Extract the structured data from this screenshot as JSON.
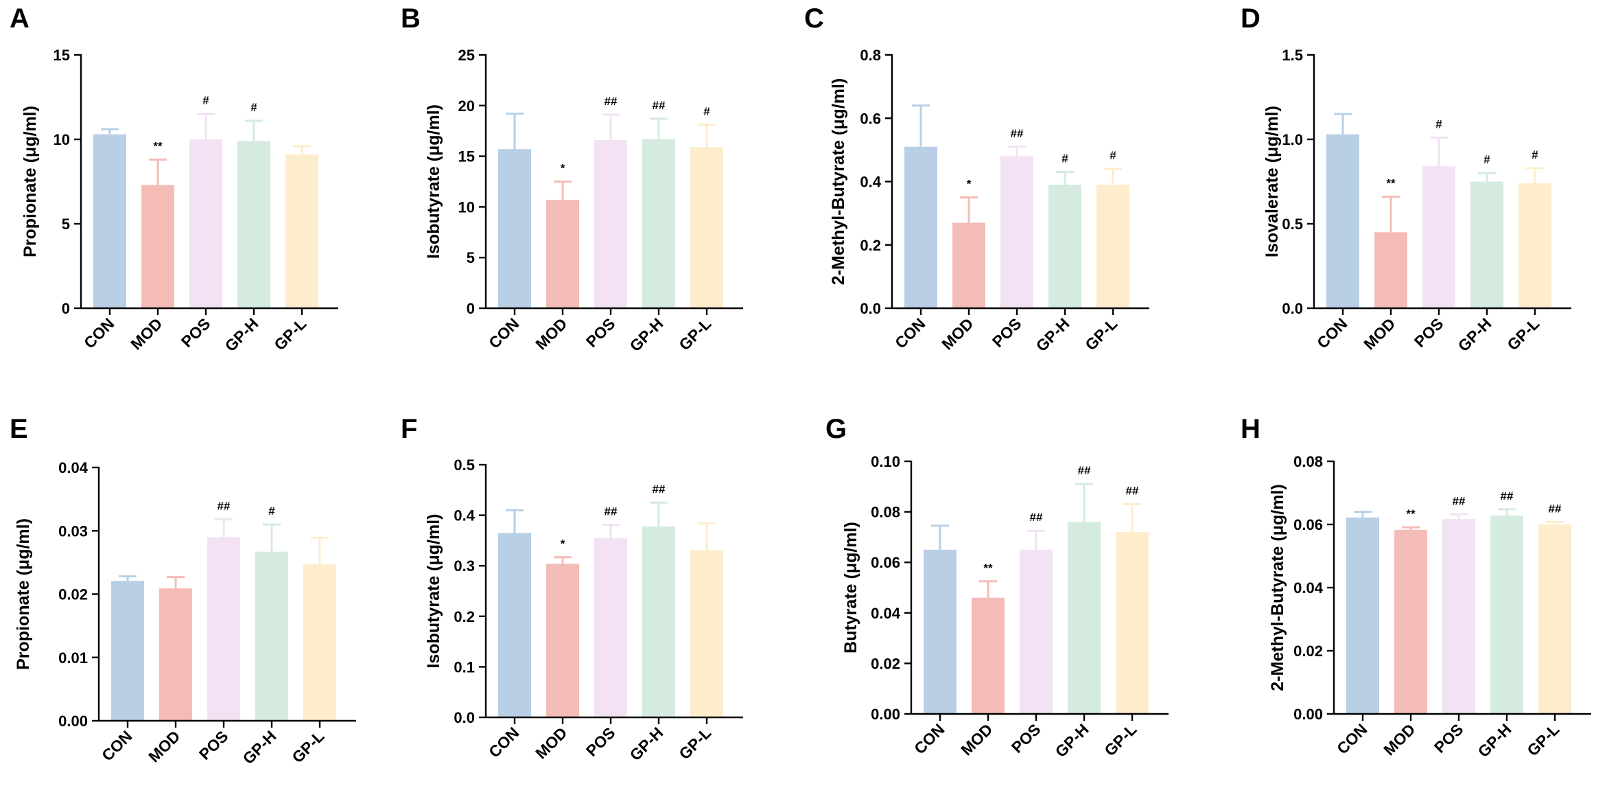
{
  "figure": {
    "colors": {
      "CON": "#b8cfe6",
      "MOD": "#f4bcb6",
      "POS": "#f2e2f3",
      "GP-H": "#d5ebe0",
      "GP-L": "#fdedcd"
    }
  },
  "chart_data": [
    {
      "panel": "A",
      "type": "bar",
      "ylabel": "Propionate (μg/ml)",
      "categories": [
        "CON",
        "MOD",
        "POS",
        "GP-H",
        "GP-L"
      ],
      "values": [
        10.3,
        7.3,
        10.0,
        9.9,
        9.1
      ],
      "errors": [
        0.3,
        1.5,
        1.5,
        1.2,
        0.5
      ],
      "annotations": [
        "",
        "**",
        "#",
        "#",
        ""
      ],
      "ylim": [
        0,
        15
      ],
      "yticks": [
        "0",
        "5",
        "10",
        "15"
      ]
    },
    {
      "panel": "B",
      "type": "bar",
      "ylabel": "Isobutyrate (μg/ml)",
      "categories": [
        "CON",
        "MOD",
        "POS",
        "GP-H",
        "GP-L"
      ],
      "values": [
        15.7,
        10.7,
        16.6,
        16.7,
        15.9
      ],
      "errors": [
        3.5,
        1.8,
        2.5,
        2.0,
        2.2
      ],
      "annotations": [
        "",
        "*",
        "##",
        "##",
        "#"
      ],
      "ylim": [
        0,
        25
      ],
      "yticks": [
        "0",
        "5",
        "10",
        "15",
        "20",
        "25"
      ]
    },
    {
      "panel": "C",
      "type": "bar",
      "ylabel": "2-Methyl-Butyrate (μg/ml)",
      "categories": [
        "CON",
        "MOD",
        "POS",
        "GP-H",
        "GP-L"
      ],
      "values": [
        0.51,
        0.27,
        0.48,
        0.39,
        0.39
      ],
      "errors": [
        0.13,
        0.08,
        0.03,
        0.04,
        0.05
      ],
      "annotations": [
        "",
        "*",
        "##",
        "#",
        "#"
      ],
      "ylim": [
        0,
        0.8
      ],
      "yticks": [
        "0.0",
        "0.2",
        "0.4",
        "0.6",
        "0.8"
      ]
    },
    {
      "panel": "D",
      "type": "bar",
      "ylabel": "Isovalerate (μg/ml)",
      "categories": [
        "CON",
        "MOD",
        "POS",
        "GP-H",
        "GP-L"
      ],
      "values": [
        1.03,
        0.45,
        0.84,
        0.75,
        0.74
      ],
      "errors": [
        0.12,
        0.21,
        0.17,
        0.05,
        0.09
      ],
      "annotations": [
        "",
        "**",
        "#",
        "#",
        "#"
      ],
      "ylim": [
        0,
        1.5
      ],
      "yticks": [
        "0.0",
        "0.5",
        "1.0",
        "1.5"
      ]
    },
    {
      "panel": "E",
      "type": "bar",
      "ylabel": "Propionate (μg/ml)",
      "categories": [
        "CON",
        "MOD",
        "POS",
        "GP-H",
        "GP-L"
      ],
      "values": [
        0.0221,
        0.0209,
        0.029,
        0.0267,
        0.0247
      ],
      "errors": [
        0.0007,
        0.0018,
        0.0028,
        0.0043,
        0.0042
      ],
      "annotations": [
        "",
        "",
        "##",
        "#",
        ""
      ],
      "ylim": [
        0,
        0.04
      ],
      "yticks": [
        "0.00",
        "0.01",
        "0.02",
        "0.03",
        "0.04"
      ]
    },
    {
      "panel": "F",
      "type": "bar",
      "ylabel": "Isobutyrate (μg/ml)",
      "categories": [
        "CON",
        "MOD",
        "POS",
        "GP-H",
        "GP-L"
      ],
      "values": [
        0.365,
        0.304,
        0.355,
        0.378,
        0.331
      ],
      "errors": [
        0.045,
        0.013,
        0.026,
        0.047,
        0.053
      ],
      "annotations": [
        "",
        "*",
        "##",
        "##",
        ""
      ],
      "ylim": [
        0,
        0.5
      ],
      "yticks": [
        "0.0",
        "0.1",
        "0.2",
        "0.3",
        "0.4",
        "0.5"
      ]
    },
    {
      "panel": "G",
      "type": "bar",
      "ylabel": "Butyrate (μg/ml)",
      "categories": [
        "CON",
        "MOD",
        "POS",
        "GP-H",
        "GP-L"
      ],
      "values": [
        0.065,
        0.046,
        0.065,
        0.076,
        0.072
      ],
      "errors": [
        0.0095,
        0.0065,
        0.0075,
        0.015,
        0.011
      ],
      "annotations": [
        "",
        "**",
        "##",
        "##",
        "##"
      ],
      "ylim": [
        0,
        0.1
      ],
      "yticks": [
        "0.00",
        "0.02",
        "0.04",
        "0.06",
        "0.08",
        "0.10"
      ]
    },
    {
      "panel": "H",
      "type": "bar",
      "ylabel": "2-Methyl-Butyrate (μg/ml)",
      "categories": [
        "CON",
        "MOD",
        "POS",
        "GP-H",
        "GP-L"
      ],
      "values": [
        0.0622,
        0.0583,
        0.0617,
        0.0628,
        0.06
      ],
      "errors": [
        0.0018,
        0.0008,
        0.0015,
        0.002,
        0.0008
      ],
      "annotations": [
        "",
        "**",
        "##",
        "##",
        "##"
      ],
      "ylim": [
        0,
        0.08
      ],
      "yticks": [
        "0.00",
        "0.02",
        "0.04",
        "0.06",
        "0.08"
      ]
    }
  ]
}
